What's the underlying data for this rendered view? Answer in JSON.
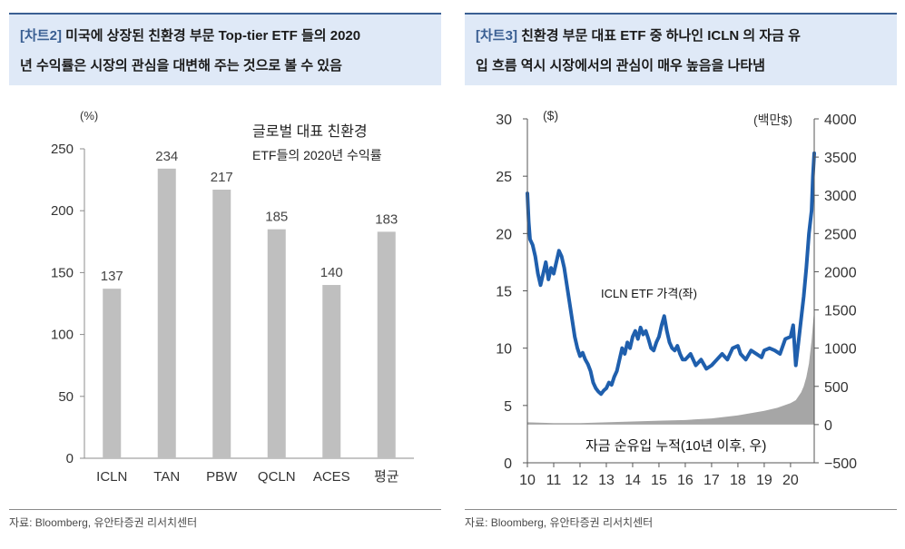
{
  "colors": {
    "accent": "#3a5f93",
    "header_bg": "#dfe9f7",
    "bar": "#bfbfbf",
    "line": "#1f5fad",
    "area": "#a6a6a6"
  },
  "left": {
    "tag": "[차트2]",
    "title_line1": "미국에 상장된 친환경 부문 Top-tier ETF 들의 2020",
    "title_line2": "년 수익률은 시장의 관심을 대변해 주는 것으로 볼 수 있음",
    "source": "자료: Bloomberg, 유안타증권 리서치센터"
  },
  "right": {
    "tag": "[차트3]",
    "title_line1": "친환경 부문 대표 ETF 중 하나인 ICLN 의 자금 유",
    "title_line2": "입 흐름 역시 시장에서의 관심이 매우 높음을 나타냄",
    "source": "자료: Bloomberg, 유안타증권 리서치센터"
  },
  "chart_data": [
    {
      "type": "bar",
      "title": "글로벌 대표 친환경 ETF들의 2020년 수익률",
      "title_line1": "글로벌 대표 친환경",
      "title_line2": "ETF들의 2020년 수익률",
      "ylabel": "(%)",
      "xlabel": "",
      "categories": [
        "ICLN",
        "TAN",
        "PBW",
        "QCLN",
        "ACES",
        "평균"
      ],
      "values": [
        137,
        234,
        217,
        185,
        140,
        183
      ],
      "ylim": [
        0,
        250
      ],
      "yticks": [
        0,
        50,
        100,
        150,
        200,
        250
      ],
      "grid": false
    },
    {
      "type": "line",
      "title": "",
      "x_tick_labels": [
        "10",
        "11",
        "12",
        "13",
        "14",
        "15",
        "16",
        "17",
        "18",
        "19",
        "20"
      ],
      "xlim": [
        2010,
        2020.9
      ],
      "y_left": {
        "label": "($)",
        "ylim": [
          0,
          30
        ],
        "ticks": [
          0,
          5,
          10,
          15,
          20,
          25,
          30
        ]
      },
      "y_right": {
        "label": "(백만$)",
        "ylim": [
          -500,
          4000
        ],
        "ticks": [
          -500,
          0,
          500,
          1000,
          1500,
          2000,
          2500,
          3000,
          3500,
          4000
        ],
        "tick_labels": [
          "−500",
          "0",
          "500",
          "1000",
          "1500",
          "2000",
          "2500",
          "3000",
          "3500",
          "4000"
        ]
      },
      "series": [
        {
          "name": "ICLN ETF 가격(좌)",
          "axis": "left",
          "x": [
            2010.0,
            2010.05,
            2010.1,
            2010.2,
            2010.3,
            2010.4,
            2010.5,
            2010.6,
            2010.7,
            2010.8,
            2010.9,
            2011.0,
            2011.1,
            2011.2,
            2011.3,
            2011.4,
            2011.5,
            2011.6,
            2011.7,
            2011.8,
            2011.9,
            2012.0,
            2012.1,
            2012.2,
            2012.3,
            2012.4,
            2012.5,
            2012.6,
            2012.7,
            2012.8,
            2012.9,
            2013.0,
            2013.1,
            2013.2,
            2013.3,
            2013.4,
            2013.5,
            2013.6,
            2013.7,
            2013.8,
            2013.9,
            2014.0,
            2014.1,
            2014.2,
            2014.3,
            2014.4,
            2014.5,
            2014.6,
            2014.7,
            2014.8,
            2014.9,
            2015.0,
            2015.1,
            2015.2,
            2015.3,
            2015.4,
            2015.5,
            2015.6,
            2015.7,
            2015.8,
            2015.9,
            2016.0,
            2016.2,
            2016.4,
            2016.6,
            2016.8,
            2017.0,
            2017.2,
            2017.4,
            2017.6,
            2017.8,
            2018.0,
            2018.1,
            2018.3,
            2018.5,
            2018.7,
            2018.9,
            2019.0,
            2019.2,
            2019.4,
            2019.6,
            2019.8,
            2020.0,
            2020.1,
            2020.2,
            2020.3,
            2020.4,
            2020.5,
            2020.6,
            2020.7,
            2020.8,
            2020.85,
            2020.9
          ],
          "values": [
            23.5,
            21.0,
            19.5,
            19.0,
            18.0,
            16.5,
            15.5,
            16.5,
            17.5,
            16.0,
            17.0,
            16.5,
            17.5,
            18.5,
            18.0,
            17.0,
            15.5,
            14.0,
            12.5,
            11.0,
            10.0,
            9.3,
            9.6,
            9.0,
            8.6,
            8.0,
            7.0,
            6.5,
            6.2,
            6.0,
            6.3,
            6.5,
            7.0,
            6.8,
            7.5,
            8.0,
            9.0,
            10.0,
            9.5,
            10.5,
            10.0,
            11.0,
            11.5,
            10.8,
            11.8,
            11.2,
            11.5,
            10.8,
            10.0,
            9.8,
            10.5,
            11.0,
            12.0,
            12.8,
            11.5,
            10.5,
            10.0,
            9.8,
            10.2,
            9.5,
            9.0,
            9.0,
            9.5,
            8.5,
            9.0,
            8.2,
            8.5,
            9.0,
            9.5,
            9.0,
            10.0,
            10.2,
            9.5,
            9.0,
            9.8,
            9.5,
            9.2,
            9.8,
            10.0,
            9.8,
            9.5,
            10.8,
            11.0,
            12.0,
            8.5,
            10.5,
            12.5,
            14.5,
            17.0,
            20.0,
            22.0,
            25.0,
            27.0
          ]
        },
        {
          "name": "자금 순유입 누적(10년 이후, 우)",
          "axis": "right",
          "type": "area",
          "x": [
            2010.0,
            2011.0,
            2012.0,
            2013.0,
            2014.0,
            2015.0,
            2016.0,
            2017.0,
            2018.0,
            2019.0,
            2019.5,
            2020.0,
            2020.2,
            2020.4,
            2020.5,
            2020.6,
            2020.7,
            2020.8,
            2020.85,
            2020.9
          ],
          "values": [
            30,
            20,
            20,
            30,
            40,
            50,
            60,
            80,
            120,
            180,
            220,
            280,
            320,
            420,
            500,
            620,
            800,
            1100,
            1300,
            1500
          ]
        }
      ],
      "annotations": [
        "ICLN ETF 가격(좌)",
        "자금 순유입 누적(10년 이후, 우)"
      ]
    }
  ]
}
